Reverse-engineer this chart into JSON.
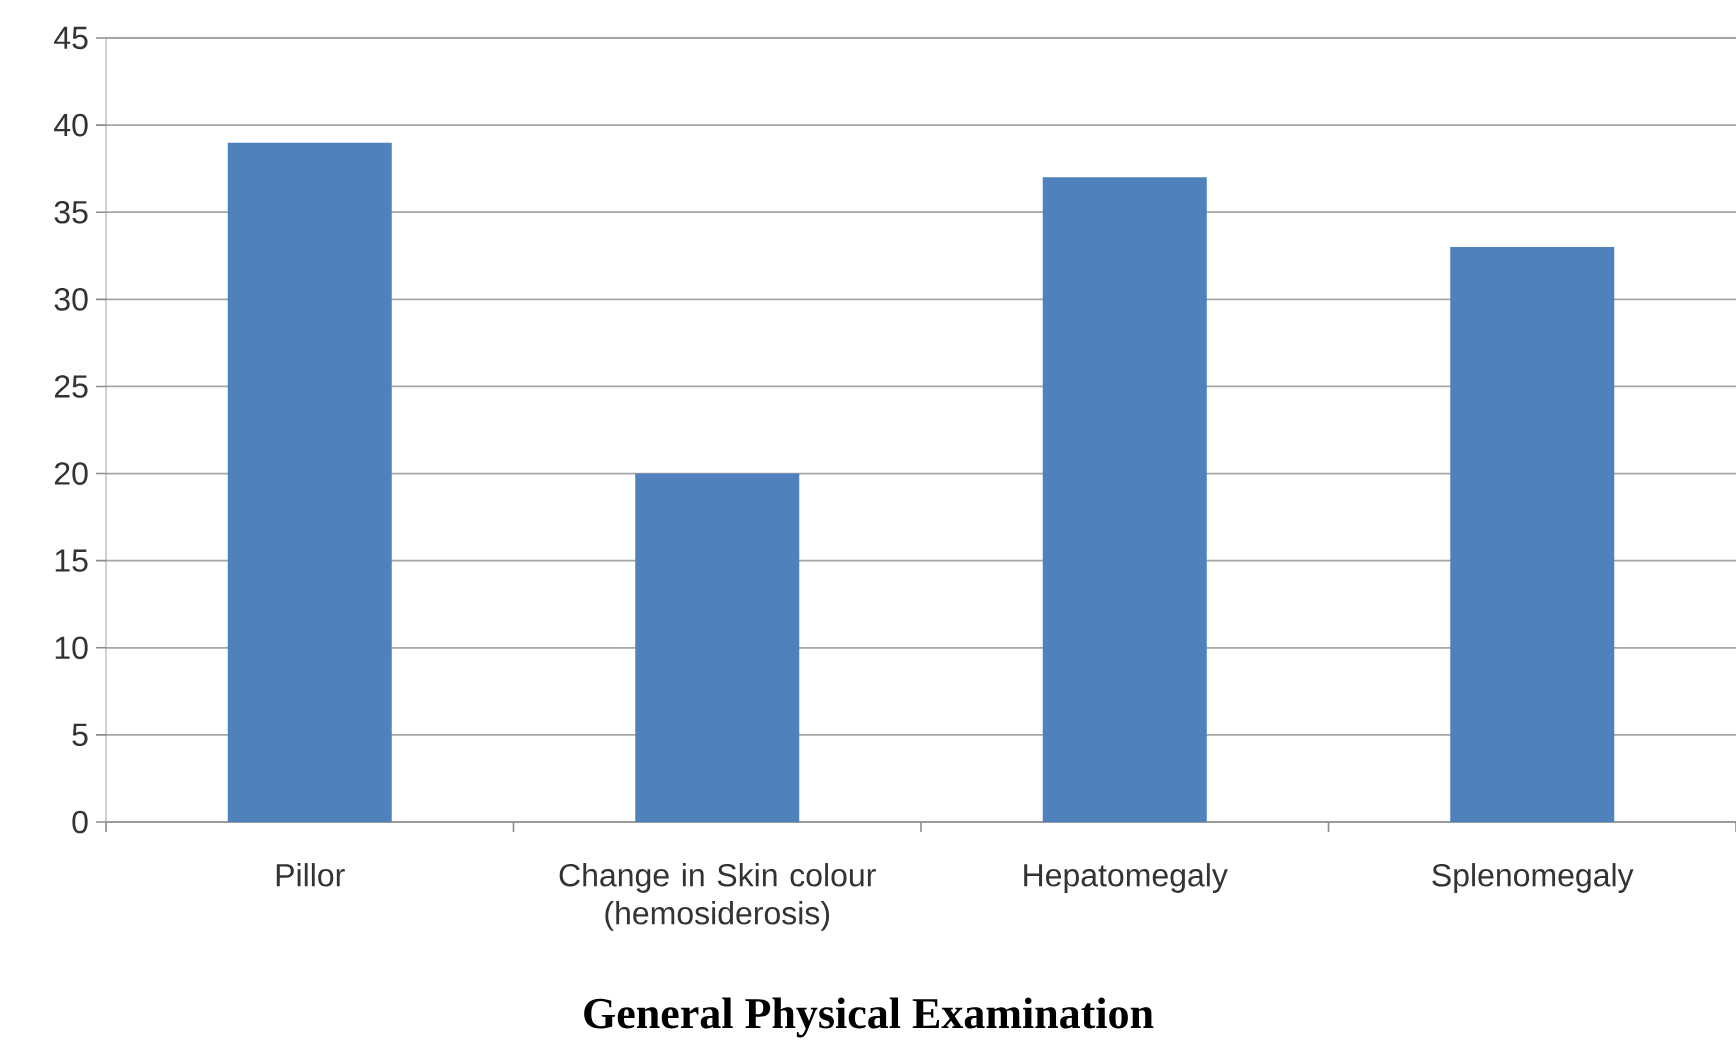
{
  "chart_data": {
    "type": "bar",
    "title": "General Physical Examination",
    "categories": [
      "Pillor",
      "Change in Skin colour (hemosiderosis)",
      "Hepatomegaly",
      "Splenomegaly"
    ],
    "values": [
      39,
      20,
      37,
      33
    ],
    "color": "#4f81bd",
    "ylim": [
      0,
      45
    ],
    "yticks": [
      0,
      5,
      10,
      15,
      20,
      25,
      30,
      35,
      40,
      45
    ],
    "grid": "y"
  }
}
